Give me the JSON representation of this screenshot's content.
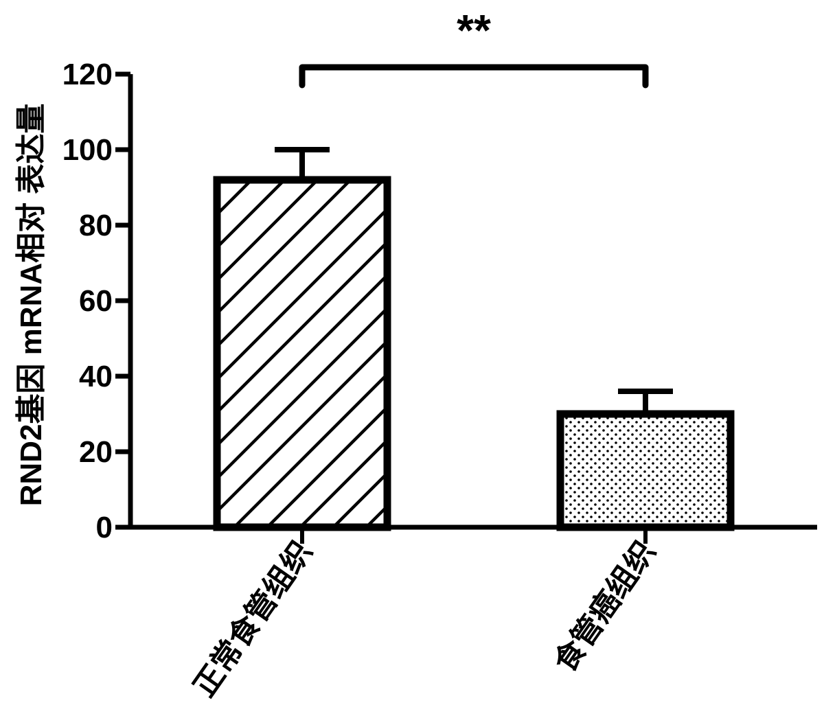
{
  "chart_data": {
    "type": "bar",
    "ylabel": "RND2基因 mRNA相对 表达量",
    "xlabel": "",
    "ylim": [
      0,
      120
    ],
    "yticks": [
      0,
      20,
      40,
      60,
      80,
      100,
      120
    ],
    "grid": false,
    "categories": [
      "正常食管组织",
      "食管癌组织"
    ],
    "values": [
      92,
      30
    ],
    "error_bars": [
      8,
      6
    ],
    "bar_patterns": [
      "diagonal-hatch",
      "dotted"
    ],
    "significance": {
      "label": "**",
      "between": [
        0,
        1
      ]
    }
  }
}
